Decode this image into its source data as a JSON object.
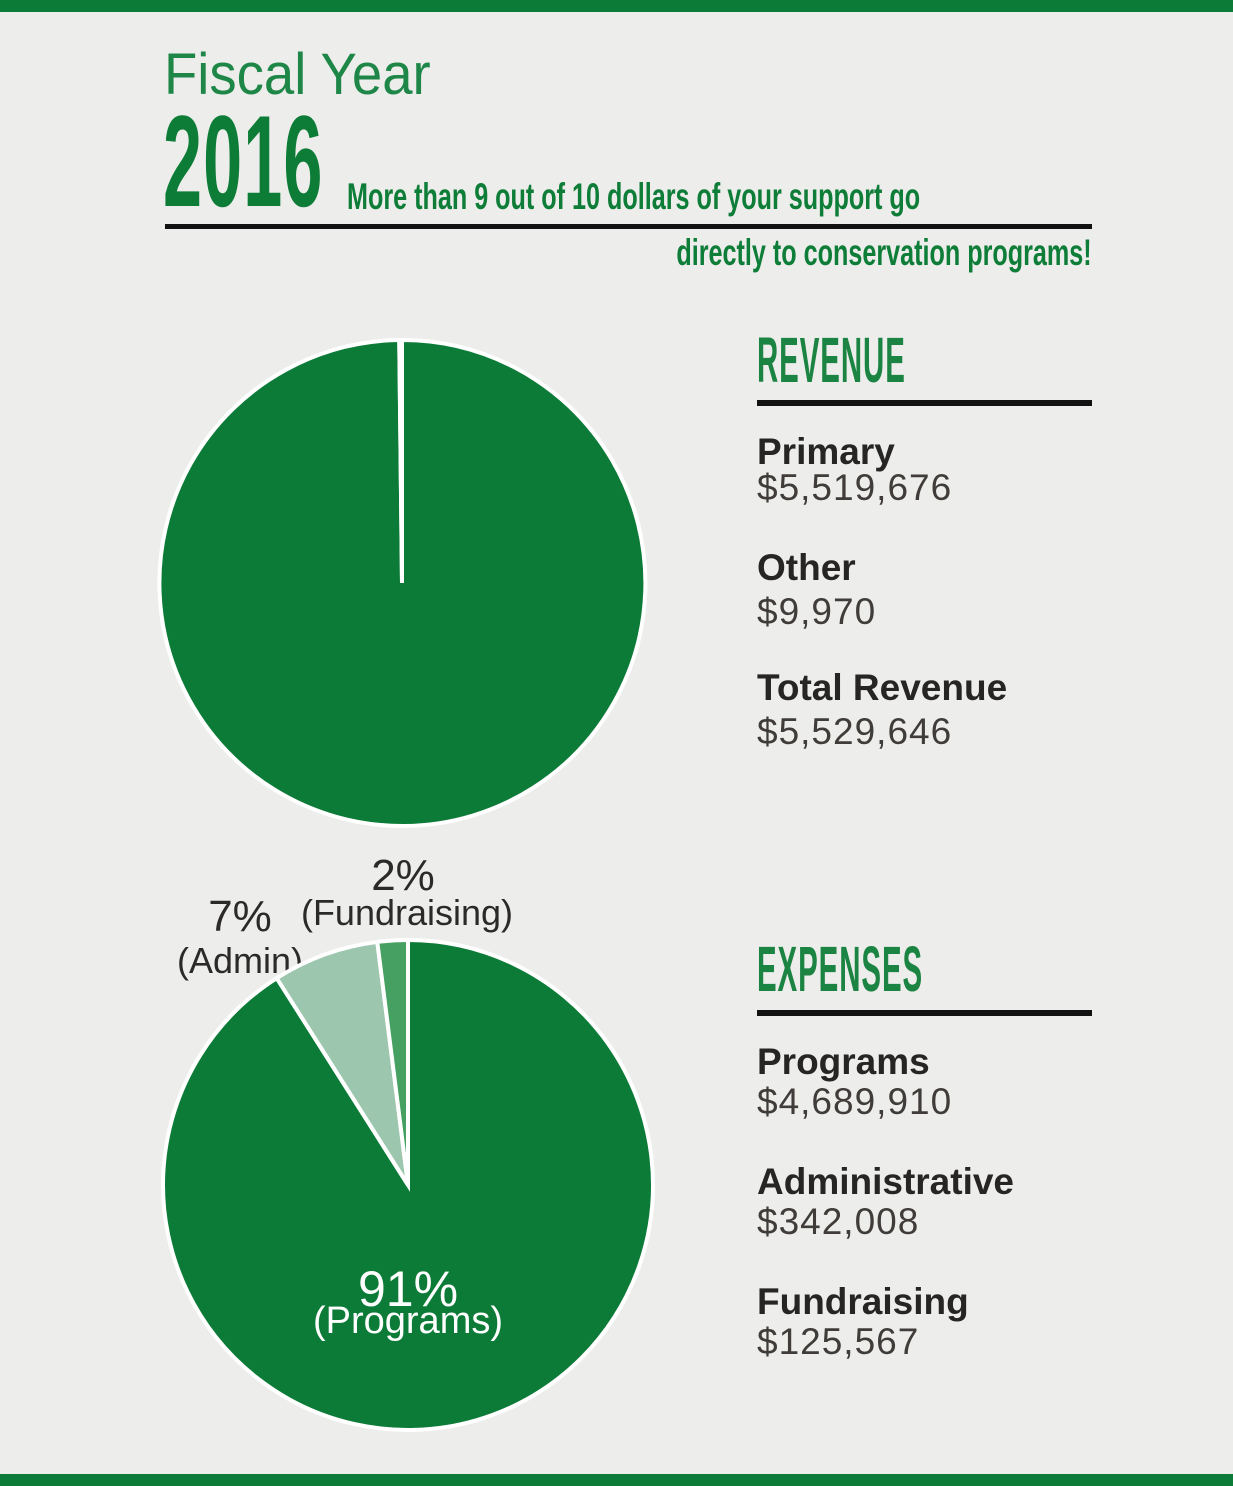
{
  "page": {
    "background": "#EDEDEC",
    "accent_bar_color": "#0C7B37"
  },
  "header": {
    "pretitle": "Fiscal Year",
    "year": "2016",
    "tagline_line1": "More than 9 out of 10 dollars of your support go",
    "tagline_line2": "directly to conservation programs!"
  },
  "revenue": {
    "title": "REVENUE",
    "items": [
      {
        "label": "Primary",
        "value": "$5,519,676"
      },
      {
        "label": "Other",
        "value": "$9,970"
      },
      {
        "label": "Total Revenue",
        "value": "$5,529,646"
      }
    ]
  },
  "expenses": {
    "title": "EXPENSES",
    "items": [
      {
        "label": "Programs",
        "value": "$4,689,910"
      },
      {
        "label": "Administrative",
        "value": "$342,008"
      },
      {
        "label": "Fundraising",
        "value": "$125,567"
      }
    ]
  },
  "chart_data": [
    {
      "type": "pie",
      "title": "Revenue",
      "legend_position": "right",
      "direction": "clockwise",
      "start_angle_deg": 0,
      "separator_color": "#FFFFFF",
      "series": [
        {
          "name": "Primary",
          "value": 5519676,
          "color": "#0C7B37"
        },
        {
          "name": "Other",
          "value": 9970,
          "color": "#FFFFFF"
        }
      ]
    },
    {
      "type": "pie",
      "title": "Expenses",
      "legend_position": "right",
      "direction": "clockwise",
      "start_angle_deg": 0,
      "separator_color": "#FFFFFF",
      "series": [
        {
          "name": "Programs",
          "value": 91,
          "color": "#0C7B37"
        },
        {
          "name": "Admin",
          "value": 7,
          "color": "#9CC6AD"
        },
        {
          "name": "Fundraising",
          "value": 2,
          "color": "#45A061"
        }
      ],
      "labels": {
        "fundraising_pct": "2%",
        "fundraising_name": "(Fundraising)",
        "admin_pct": "7%",
        "admin_name": "(Admin)",
        "programs_pct": "91%",
        "programs_name": "(Programs)"
      }
    }
  ]
}
